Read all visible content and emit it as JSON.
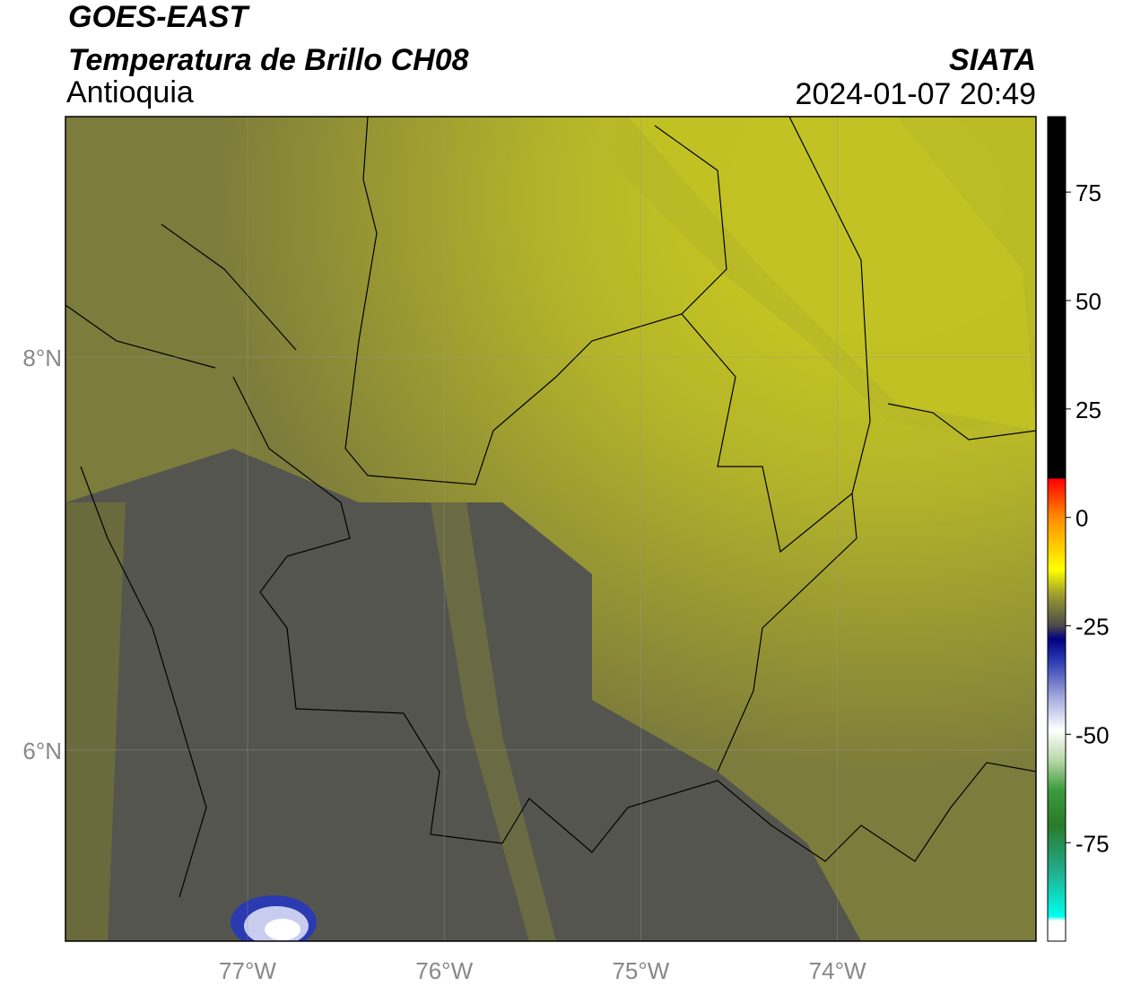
{
  "header": {
    "title": "GOES-EAST",
    "subtitle": "Temperatura de Brillo CH08",
    "region": "Antioquia",
    "source": "SIATA",
    "datetime": "2024-01-07 20:49"
  },
  "map": {
    "xlim": [
      -77.926,
      -72.99
    ],
    "ylim": [
      5.027,
      9.224
    ],
    "xticks": [
      {
        "value": -77,
        "label": "77°W"
      },
      {
        "value": -76,
        "label": "76°W"
      },
      {
        "value": -75,
        "label": "75°W"
      },
      {
        "value": -74,
        "label": "74°W"
      }
    ],
    "yticks": [
      {
        "value": 8,
        "label": "8°N"
      },
      {
        "value": 6,
        "label": "6°N"
      }
    ],
    "grid": true
  },
  "colorbar": {
    "lim": [
      -97.7,
      92.4
    ],
    "ticks": [
      75,
      50,
      25,
      0,
      -25,
      -50,
      -75
    ],
    "stops": [
      {
        "value": 92.4,
        "color": "#000000"
      },
      {
        "value": 9,
        "color": "#000000"
      },
      {
        "value": 8.9,
        "color": "#ff0000"
      },
      {
        "value": 0,
        "color": "#ff8c00"
      },
      {
        "value": -12,
        "color": "#ffff00"
      },
      {
        "value": -18,
        "color": "#9a9a30"
      },
      {
        "value": -25,
        "color": "#4a4a4a"
      },
      {
        "value": -28,
        "color": "#000080"
      },
      {
        "value": -33,
        "color": "#2a3ab0"
      },
      {
        "value": -42,
        "color": "#aab0e0"
      },
      {
        "value": -49,
        "color": "#ffffff"
      },
      {
        "value": -56,
        "color": "#b8d8a8"
      },
      {
        "value": -63,
        "color": "#3a9a3a"
      },
      {
        "value": -71,
        "color": "#2a7a2a"
      },
      {
        "value": -82,
        "color": "#20b090"
      },
      {
        "value": -92,
        "color": "#00ffee"
      },
      {
        "value": -93,
        "color": "#ffffff"
      },
      {
        "value": -97.7,
        "color": "#ffffff"
      }
    ]
  }
}
